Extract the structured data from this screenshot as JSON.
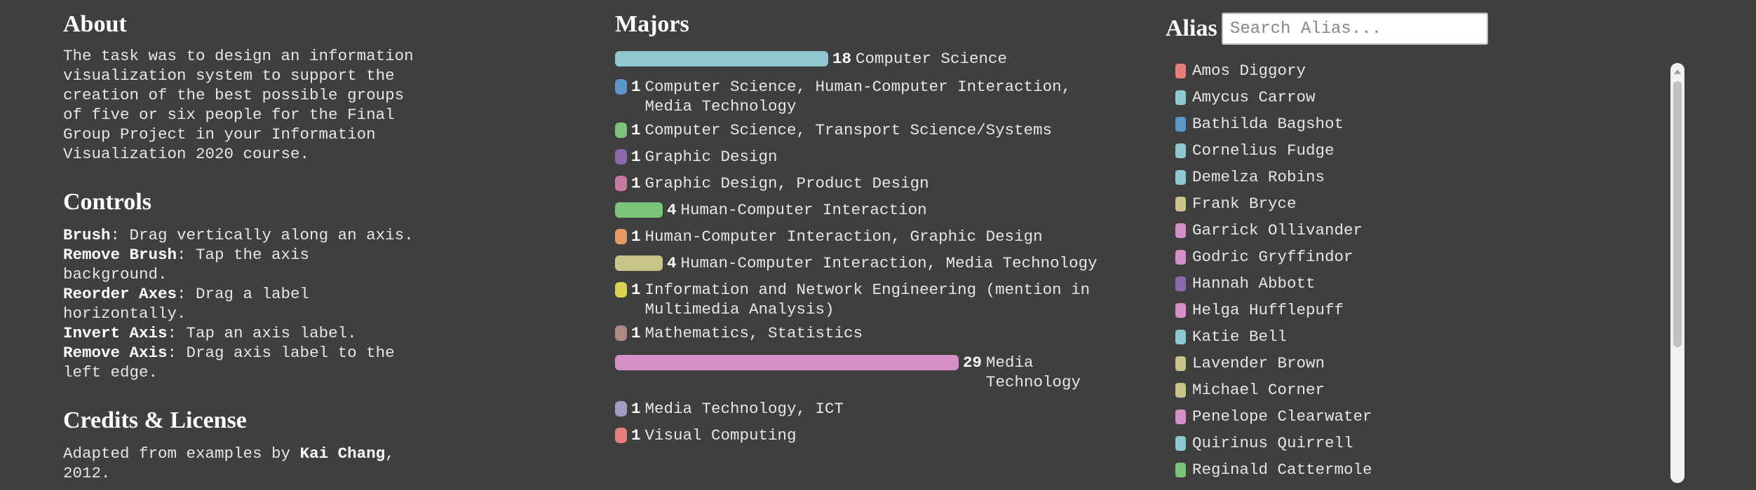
{
  "about": {
    "title": "About",
    "text": "The task was to design an information\nvisualization system to support the\ncreation of the best possible groups\nof five or six people for the Final\nGroup Project in your Information\nVisualization 2020 course."
  },
  "controls": {
    "title": "Controls",
    "items": [
      {
        "term": "Brush",
        "desc": ": Drag vertically along an axis."
      },
      {
        "term": "Remove Brush",
        "desc": ": Tap the axis\nbackground."
      },
      {
        "term": "Reorder Axes",
        "desc": ": Drag a label\nhorizontally."
      },
      {
        "term": "Invert Axis",
        "desc": ": Tap an axis label."
      },
      {
        "term": "Remove Axis",
        "desc": ": Drag axis label to the\nleft edge."
      }
    ]
  },
  "credits": {
    "title": "Credits & License",
    "prefix": "Adapted from examples by ",
    "author": "Kai Chang",
    "suffix": ",\n2012."
  },
  "majors": {
    "title": "Majors",
    "items": [
      {
        "count": 18,
        "label": "Computer Science",
        "color": "#8fc9cf"
      },
      {
        "count": 1,
        "label": "Computer Science, Human-Computer Interaction,\nMedia Technology",
        "color": "#5b97c9"
      },
      {
        "count": 1,
        "label": "Computer Science, Transport Science/Systems",
        "color": "#7cc47a"
      },
      {
        "count": 1,
        "label": "Graphic Design",
        "color": "#8a69ad"
      },
      {
        "count": 1,
        "label": "Graphic Design, Product Design",
        "color": "#c878a4"
      },
      {
        "count": 4,
        "label": "Human-Computer Interaction",
        "color": "#7cc47a"
      },
      {
        "count": 1,
        "label": "Human-Computer Interaction, Graphic Design",
        "color": "#e69a62"
      },
      {
        "count": 4,
        "label": "Human-Computer Interaction, Media Technology",
        "color": "#c9c489"
      },
      {
        "count": 1,
        "label": "Information and Network Engineering (mention in\nMultimedia Analysis)",
        "color": "#d9d24a"
      },
      {
        "count": 1,
        "label": "Mathematics, Statistics",
        "color": "#b08a82"
      },
      {
        "count": 29,
        "label": "Media\nTechnology",
        "color": "#d490c4"
      },
      {
        "count": 1,
        "label": "Media Technology, ICT",
        "color": "#a59ac4"
      },
      {
        "count": 1,
        "label": "Visual Computing",
        "color": "#e77f7c"
      }
    ]
  },
  "alias": {
    "title": "Alias",
    "search_placeholder": "Search Alias...",
    "items": [
      {
        "name": "Amos Diggory",
        "color": "#e77f7c"
      },
      {
        "name": "Amycus Carrow",
        "color": "#8fc9cf"
      },
      {
        "name": "Bathilda Bagshot",
        "color": "#5b97c9"
      },
      {
        "name": "Cornelius Fudge",
        "color": "#8fc9cf"
      },
      {
        "name": "Demelza Robins",
        "color": "#8fc9cf"
      },
      {
        "name": "Frank Bryce",
        "color": "#c9c489"
      },
      {
        "name": "Garrick Ollivander",
        "color": "#d490c4"
      },
      {
        "name": "Godric Gryffindor",
        "color": "#d490c4"
      },
      {
        "name": "Hannah Abbott",
        "color": "#8a69ad"
      },
      {
        "name": "Helga Hufflepuff",
        "color": "#d490c4"
      },
      {
        "name": "Katie Bell",
        "color": "#8fc9cf"
      },
      {
        "name": "Lavender Brown",
        "color": "#c9c489"
      },
      {
        "name": "Michael Corner",
        "color": "#c9c489"
      },
      {
        "name": "Penelope Clearwater",
        "color": "#d490c4"
      },
      {
        "name": "Quirinus Quirrell",
        "color": "#8fc9cf"
      },
      {
        "name": "Reginald Cattermole",
        "color": "#7cc47a"
      }
    ]
  }
}
